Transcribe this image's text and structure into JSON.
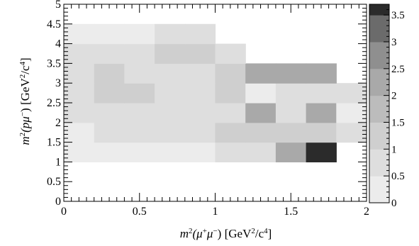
{
  "chart_data": {
    "type": "heatmap",
    "title": "",
    "xlabel": {
      "pre": "m",
      "sup1": "2",
      "mid": "(μ",
      "sup2": "+",
      "mid2": "μ",
      "sup3": "−",
      "post": ") [GeV",
      "sup4": "2",
      "post2": "/c",
      "sup5": "4",
      "end": "]"
    },
    "ylabel": {
      "pre": "m",
      "sup1": "2",
      "mid": "(pμ",
      "sup2": "−",
      "post": ") [GeV",
      "sup4": "2",
      "post2": "/c",
      "sup5": "4",
      "end": "]"
    },
    "xlim": [
      0,
      2
    ],
    "ylim": [
      0,
      5
    ],
    "x_ticks": [
      0,
      0.5,
      1,
      1.5,
      2
    ],
    "x_tick_labels": [
      "0",
      "0.5",
      "1",
      "1.5",
      "2"
    ],
    "y_ticks": [
      0,
      0.5,
      1,
      1.5,
      2,
      2.5,
      3,
      3.5,
      4,
      4.5,
      5
    ],
    "y_tick_labels": [
      "0",
      "0.5",
      "1",
      "1.5",
      "2",
      "2.5",
      "3",
      "3.5",
      "4",
      "4.5",
      "5"
    ],
    "x_bin_width": 0.2,
    "y_bin_width": 0.5,
    "x_bins_start": 0,
    "y_bins_start": 1,
    "values": [
      [
        0.25,
        0.25,
        0.25,
        0.25,
        0.25,
        0.75,
        0.75,
        2.25,
        3.75,
        null
      ],
      [
        0.25,
        0.75,
        0.75,
        0.75,
        0.75,
        1.25,
        1.25,
        1.25,
        1.25,
        0.75
      ],
      [
        0.75,
        0.75,
        0.75,
        0.75,
        0.75,
        0.75,
        2.25,
        0.75,
        2.25,
        0.25
      ],
      [
        0.75,
        1.25,
        1.25,
        0.75,
        0.75,
        1.25,
        0.25,
        0.75,
        0.75,
        0.75
      ],
      [
        0.75,
        1.25,
        0.75,
        0.75,
        0.75,
        1.25,
        2.25,
        2.25,
        2.25,
        null
      ],
      [
        0.75,
        0.75,
        0.75,
        1.25,
        1.25,
        0.75,
        null,
        null,
        null,
        null
      ],
      [
        0.25,
        0.25,
        0.25,
        0.75,
        0.75,
        null,
        null,
        null,
        null,
        null
      ]
    ],
    "colorbar": {
      "min": 0,
      "max": 3.7,
      "ticks": [
        0,
        0.5,
        1,
        1.5,
        2,
        2.5,
        3,
        3.5
      ],
      "tick_labels": [
        "0",
        "0.5",
        "1",
        "1.5",
        "2",
        "2.5",
        "3",
        "3.5"
      ],
      "levels": [
        {
          "from": 0,
          "to": 0.5,
          "color": "#ececec"
        },
        {
          "from": 0.5,
          "to": 1.0,
          "color": "#dedede"
        },
        {
          "from": 1.0,
          "to": 1.5,
          "color": "#cfcfcf"
        },
        {
          "from": 1.5,
          "to": 2.0,
          "color": "#bcbcbc"
        },
        {
          "from": 2.0,
          "to": 2.5,
          "color": "#a9a9a9"
        },
        {
          "from": 2.5,
          "to": 3.0,
          "color": "#8f8f8f"
        },
        {
          "from": 3.0,
          "to": 3.5,
          "color": "#6b6b6b"
        },
        {
          "from": 3.5,
          "to": 3.7,
          "color": "#2b2b2b"
        }
      ]
    }
  }
}
